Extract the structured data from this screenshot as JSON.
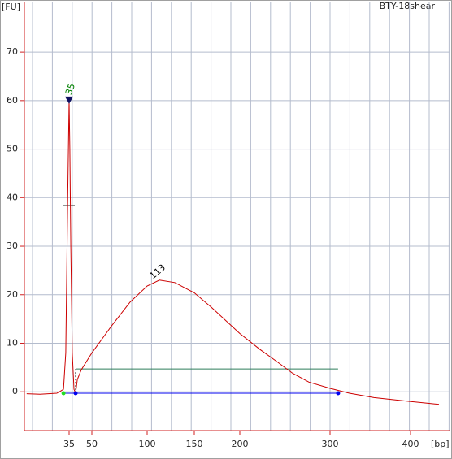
{
  "chart_data": {
    "type": "line",
    "title": "BTY-18shear",
    "y_label": "[FU]",
    "x_label": "[bp]",
    "x": [
      16,
      22,
      29.5,
      32.5,
      33.5,
      34.3,
      35,
      35.5,
      36.1,
      37.1,
      38.2,
      39.3,
      40.4,
      43,
      50,
      67.6,
      84.6,
      100,
      113,
      129.3,
      150,
      168.8,
      200,
      222.5,
      240.5,
      258.6,
      276.6,
      300,
      324,
      354.5,
      400,
      435
    ],
    "series": [
      {
        "color": "#cc0000",
        "values": [
          -0.4,
          -0.5,
          -0.3,
          0.5,
          8,
          38,
          60,
          50,
          30,
          8,
          0.5,
          -0.3,
          2.5,
          4.5,
          8,
          13.5,
          18.5,
          21.8,
          23,
          22.5,
          20.4,
          17.4,
          12,
          8.7,
          6.3,
          3.8,
          2,
          0.7,
          -0.3,
          -1.2,
          -2,
          -2.6
        ]
      }
    ],
    "xlim": [
      15,
      443
    ],
    "xticks": [
      35,
      50,
      100,
      150,
      200,
      300,
      400
    ],
    "ylim": [
      -8,
      80.4
    ],
    "yticks": [
      0,
      10,
      20,
      30,
      40,
      50,
      60,
      70
    ],
    "grid": true,
    "peak_labels": [
      {
        "x": 35,
        "y": 60,
        "color": "#008000"
      },
      {
        "x": 113,
        "y": 23,
        "color": "#000000"
      }
    ],
    "markers": {
      "lower_start": 32.5,
      "region_start": 39.3,
      "region_end": 310,
      "baseline": -0.3,
      "region_level": 4.7,
      "half_height": 38.4
    }
  }
}
